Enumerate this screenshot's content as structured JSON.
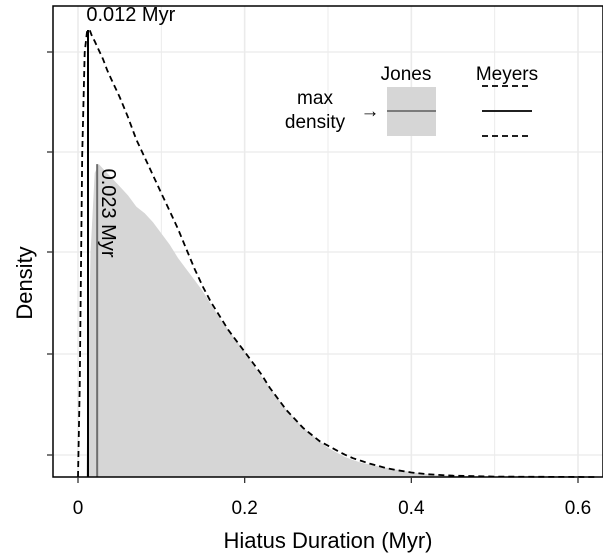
{
  "chart_data": {
    "type": "area",
    "xlabel": "Hiatus Duration (Myr)",
    "ylabel": "Density",
    "xlim": [
      -0.03,
      0.63
    ],
    "ylim": [
      0,
      1.0
    ],
    "x_ticks": [
      0,
      0.2,
      0.4,
      0.6
    ],
    "x_tick_labels": [
      "0",
      "0.2",
      "0.4",
      "0.6"
    ],
    "grid": true,
    "legend_position": "top-right",
    "colors": {
      "jones_fill": "#d6d6d6",
      "jones_line": "#6e6e6e",
      "meyers_line": "#000000",
      "grid": "#ebebeb"
    },
    "series": [
      {
        "name": "Jones",
        "style": "filled-area",
        "x": [
          0.0,
          0.005,
          0.01,
          0.015,
          0.02,
          0.025,
          0.03,
          0.04,
          0.05,
          0.06,
          0.07,
          0.08,
          0.09,
          0.1,
          0.11,
          0.12,
          0.13,
          0.14,
          0.15,
          0.16,
          0.17,
          0.18,
          0.19,
          0.2,
          0.21,
          0.22,
          0.23,
          0.24,
          0.25,
          0.26,
          0.27,
          0.28,
          0.29,
          0.3,
          0.31,
          0.32,
          0.33,
          0.34,
          0.35,
          0.36,
          0.38,
          0.4,
          0.42,
          0.45,
          0.5,
          0.55,
          0.62
        ],
        "y": [
          0.0,
          0.0,
          0.0,
          0.5,
          0.68,
          0.7,
          0.69,
          0.67,
          0.65,
          0.63,
          0.605,
          0.59,
          0.57,
          0.545,
          0.52,
          0.49,
          0.465,
          0.44,
          0.415,
          0.385,
          0.355,
          0.33,
          0.305,
          0.28,
          0.252,
          0.225,
          0.2,
          0.175,
          0.15,
          0.13,
          0.11,
          0.095,
          0.08,
          0.065,
          0.055,
          0.045,
          0.038,
          0.032,
          0.028,
          0.024,
          0.017,
          0.011,
          0.006,
          0.003,
          0.001,
          0.0005,
          0.0
        ]
      },
      {
        "name": "Meyers",
        "style": "dashed",
        "x": [
          0.0,
          0.002,
          0.005,
          0.008,
          0.011,
          0.014,
          0.017,
          0.02,
          0.025,
          0.03,
          0.035,
          0.04,
          0.05,
          0.06,
          0.07,
          0.08,
          0.09,
          0.1,
          0.11,
          0.12,
          0.13,
          0.14,
          0.15,
          0.16,
          0.17,
          0.18,
          0.19,
          0.2,
          0.21,
          0.22,
          0.23,
          0.24,
          0.25,
          0.26,
          0.27,
          0.28,
          0.29,
          0.3,
          0.31,
          0.32,
          0.33,
          0.34,
          0.35,
          0.36,
          0.37,
          0.38,
          0.4,
          0.42,
          0.45,
          0.5,
          0.55,
          0.62
        ],
        "y": [
          0.0,
          0.2,
          0.72,
          0.95,
          1.0,
          1.0,
          0.985,
          0.975,
          0.955,
          0.935,
          0.91,
          0.89,
          0.85,
          0.805,
          0.755,
          0.715,
          0.675,
          0.635,
          0.595,
          0.555,
          0.51,
          0.465,
          0.425,
          0.39,
          0.36,
          0.33,
          0.305,
          0.28,
          0.255,
          0.23,
          0.2,
          0.175,
          0.15,
          0.13,
          0.11,
          0.095,
          0.08,
          0.07,
          0.06,
          0.05,
          0.042,
          0.036,
          0.03,
          0.025,
          0.02,
          0.016,
          0.01,
          0.006,
          0.003,
          0.001,
          0.0005,
          0.0
        ]
      }
    ],
    "max_density_lines": [
      {
        "series": "Jones",
        "x": 0.023,
        "y": 0.7,
        "color": "#6e6e6e",
        "dash": "solid"
      },
      {
        "series": "Meyers",
        "x": 0.012,
        "y": 1.0,
        "color": "#000000",
        "dash": "solid"
      }
    ],
    "annotations": [
      {
        "text": "0.012 Myr",
        "x": 0.01,
        "y": 1.02,
        "rotation": 0
      },
      {
        "text": "0.023 Myr",
        "x": 0.029,
        "y": 0.69,
        "rotation": 90
      }
    ],
    "legend": {
      "columns": [
        "Jones",
        "Meyers"
      ],
      "row_label": "max density",
      "row_label_lines": [
        "max",
        "density"
      ],
      "row_arrow": "→",
      "meyers_items": [
        "dashed",
        "solid",
        "dashed"
      ]
    }
  }
}
